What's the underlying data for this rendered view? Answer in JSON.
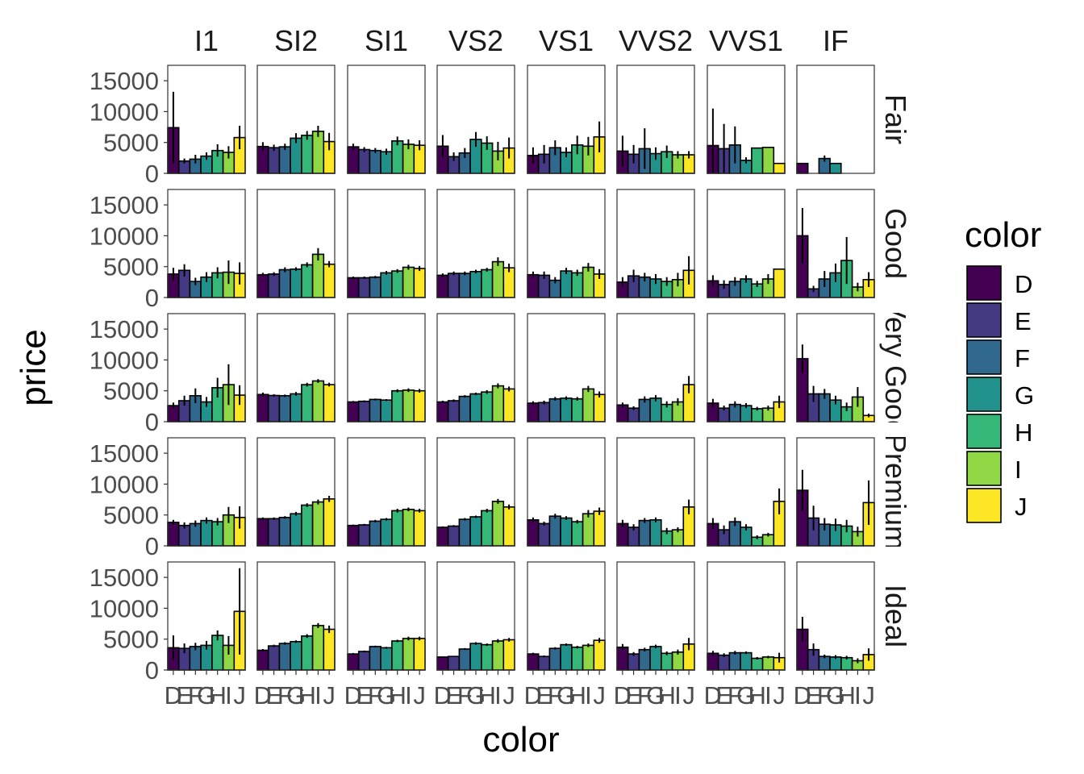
{
  "chart_data": {
    "type": "bar",
    "xlabel": "color",
    "ylabel": "price",
    "ylim": [
      0,
      17500
    ],
    "yticks": [
      "0",
      "5000",
      "10000",
      "15000"
    ],
    "col_facets": [
      "I1",
      "SI2",
      "SI1",
      "VS2",
      "VS1",
      "VVS2",
      "VVS1",
      "IF"
    ],
    "row_facets": [
      "Fair",
      "Good",
      "Very Good",
      "Premium",
      "Ideal"
    ],
    "categories": [
      "D",
      "E",
      "F",
      "G",
      "H",
      "I",
      "J"
    ],
    "legend": {
      "title": "color",
      "position": "right",
      "entries": [
        "D",
        "E",
        "F",
        "G",
        "H",
        "I",
        "J"
      ]
    },
    "colors": {
      "D": "#440154",
      "E": "#443983",
      "F": "#31688e",
      "G": "#21918c",
      "H": "#35b779",
      "I": "#8fd744",
      "J": "#fde725"
    },
    "grid": false,
    "errorbars": "mean ± 1.96·se",
    "panels": [
      {
        "row": "Fair",
        "col": "I1",
        "values": [
          7400,
          2000,
          2300,
          2800,
          3700,
          3400,
          5800
        ],
        "err": [
          5800,
          400,
          700,
          600,
          1000,
          1000,
          1900
        ]
      },
      {
        "row": "Fair",
        "col": "SI2",
        "values": [
          4350,
          4150,
          4300,
          5700,
          6150,
          6800,
          5150
        ],
        "err": [
          700,
          500,
          500,
          800,
          700,
          900,
          1400
        ]
      },
      {
        "row": "Fair",
        "col": "SI1",
        "values": [
          4300,
          3850,
          3700,
          3500,
          5250,
          4700,
          4550
        ],
        "err": [
          500,
          400,
          400,
          500,
          700,
          800,
          800
        ]
      },
      {
        "row": "Fair",
        "col": "VS2",
        "values": [
          4400,
          2700,
          3300,
          5500,
          4900,
          3600,
          4100
        ],
        "err": [
          1800,
          700,
          800,
          1200,
          1100,
          1500,
          1700
        ]
      },
      {
        "row": "Fair",
        "col": "VS1",
        "values": [
          2900,
          3100,
          4150,
          3400,
          4600,
          4400,
          5900
        ],
        "err": [
          1300,
          1500,
          1200,
          800,
          1500,
          1500,
          2500
        ]
      },
      {
        "row": "Fair",
        "col": "VVS2",
        "values": [
          3600,
          3100,
          4000,
          3200,
          3500,
          3000,
          3000
        ],
        "err": [
          2500,
          1500,
          3300,
          1000,
          1000,
          600,
          600
        ]
      },
      {
        "row": "Fair",
        "col": "VVS1",
        "values": [
          4500,
          4000,
          4600,
          2100,
          4100,
          4200,
          1600
        ],
        "err": [
          6000,
          4000,
          3000,
          500,
          0,
          0,
          0
        ]
      },
      {
        "row": "Fair",
        "col": "IF",
        "values": [
          1600,
          0,
          2400,
          1600,
          0,
          0,
          0
        ],
        "err": [
          0,
          0,
          500,
          0,
          0,
          0,
          0
        ]
      },
      {
        "row": "Good",
        "col": "I1",
        "values": [
          3800,
          4400,
          2600,
          3300,
          4000,
          4100,
          3900
        ],
        "err": [
          1000,
          1000,
          600,
          800,
          900,
          1900,
          1800
        ]
      },
      {
        "row": "Good",
        "col": "SI2",
        "values": [
          3700,
          3800,
          4500,
          4600,
          5300,
          7000,
          5400
        ],
        "err": [
          300,
          300,
          400,
          300,
          400,
          1000,
          500
        ]
      },
      {
        "row": "Good",
        "col": "SI1",
        "values": [
          3200,
          3200,
          3300,
          4000,
          4300,
          4900,
          4700
        ],
        "err": [
          200,
          200,
          200,
          300,
          300,
          400,
          400
        ]
      },
      {
        "row": "Good",
        "col": "VS2",
        "values": [
          3600,
          3900,
          3900,
          4200,
          4500,
          5800,
          4800
        ],
        "err": [
          300,
          300,
          300,
          300,
          300,
          700,
          700
        ]
      },
      {
        "row": "Good",
        "col": "VS1",
        "values": [
          3700,
          3600,
          2800,
          4300,
          4000,
          4900,
          3800
        ],
        "err": [
          500,
          600,
          500,
          500,
          500,
          700,
          800
        ]
      },
      {
        "row": "Good",
        "col": "VVS2",
        "values": [
          2500,
          3500,
          3300,
          3000,
          2600,
          2900,
          4400
        ],
        "err": [
          800,
          1000,
          700,
          800,
          700,
          1100,
          2300
        ]
      },
      {
        "row": "Good",
        "col": "VVS1",
        "values": [
          2700,
          2100,
          2600,
          3000,
          2200,
          3000,
          4600
        ],
        "err": [
          900,
          700,
          700,
          600,
          500,
          800,
          0
        ]
      },
      {
        "row": "Good",
        "col": "IF",
        "values": [
          10000,
          1400,
          3000,
          4000,
          6000,
          1700,
          2900
        ],
        "err": [
          4500,
          500,
          1300,
          1500,
          3800,
          700,
          1200
        ]
      },
      {
        "row": "Very Good",
        "col": "I1",
        "values": [
          2600,
          3400,
          4200,
          3200,
          5500,
          6000,
          4300
        ],
        "err": [
          500,
          800,
          1200,
          800,
          1600,
          3300,
          1600
        ]
      },
      {
        "row": "Very Good",
        "col": "SI2",
        "values": [
          4400,
          4250,
          4200,
          4500,
          6000,
          6600,
          6000
        ],
        "err": [
          300,
          200,
          200,
          300,
          300,
          300,
          300
        ]
      },
      {
        "row": "Very Good",
        "col": "SI1",
        "values": [
          3200,
          3300,
          3600,
          3500,
          5000,
          5100,
          5000
        ],
        "err": [
          150,
          150,
          150,
          150,
          250,
          300,
          300
        ]
      },
      {
        "row": "Very Good",
        "col": "VS2",
        "values": [
          3200,
          3400,
          4100,
          4500,
          4800,
          5800,
          5300
        ],
        "err": [
          200,
          200,
          200,
          200,
          300,
          400,
          400
        ]
      },
      {
        "row": "Very Good",
        "col": "VS1",
        "values": [
          3000,
          3100,
          3700,
          3800,
          3700,
          5300,
          4400
        ],
        "err": [
          300,
          300,
          300,
          300,
          300,
          500,
          500
        ]
      },
      {
        "row": "Very Good",
        "col": "VVS2",
        "values": [
          2700,
          2200,
          3600,
          3800,
          2800,
          3200,
          6000
        ],
        "err": [
          400,
          300,
          500,
          500,
          500,
          600,
          1400
        ]
      },
      {
        "row": "Very Good",
        "col": "VVS1",
        "values": [
          3000,
          2200,
          2800,
          2600,
          2100,
          2200,
          3200
        ],
        "err": [
          700,
          400,
          500,
          400,
          300,
          400,
          1000
        ]
      },
      {
        "row": "Very Good",
        "col": "IF",
        "values": [
          10200,
          4500,
          4500,
          3500,
          2400,
          4000,
          1000
        ],
        "err": [
          2300,
          1300,
          800,
          700,
          700,
          1600,
          300
        ]
      },
      {
        "row": "Premium",
        "col": "I1",
        "values": [
          3800,
          3300,
          3600,
          4100,
          3900,
          5000,
          4600
        ],
        "err": [
          400,
          500,
          500,
          500,
          600,
          1300,
          1800
        ]
      },
      {
        "row": "Premium",
        "col": "SI2",
        "values": [
          4400,
          4400,
          4600,
          5200,
          6600,
          7100,
          7600
        ],
        "err": [
          200,
          200,
          200,
          300,
          300,
          400,
          500
        ]
      },
      {
        "row": "Premium",
        "col": "SI1",
        "values": [
          3300,
          3400,
          4000,
          4300,
          5700,
          5900,
          5700
        ],
        "err": [
          150,
          150,
          200,
          200,
          300,
          300,
          300
        ]
      },
      {
        "row": "Premium",
        "col": "VS2",
        "values": [
          3000,
          3200,
          4300,
          4700,
          5700,
          7200,
          6300
        ],
        "err": [
          150,
          150,
          200,
          200,
          300,
          400,
          400
        ]
      },
      {
        "row": "Premium",
        "col": "VS1",
        "values": [
          4200,
          3600,
          4800,
          4500,
          3900,
          5200,
          5600
        ],
        "err": [
          400,
          300,
          400,
          300,
          300,
          600,
          600
        ]
      },
      {
        "row": "Premium",
        "col": "VVS2",
        "values": [
          3600,
          3000,
          4100,
          4200,
          2400,
          2600,
          6300
        ],
        "err": [
          600,
          500,
          400,
          400,
          500,
          400,
          1200
        ]
      },
      {
        "row": "Premium",
        "col": "VVS1",
        "values": [
          3600,
          2600,
          3900,
          3000,
          1400,
          1800,
          7200
        ],
        "err": [
          900,
          700,
          700,
          500,
          300,
          300,
          2100
        ]
      },
      {
        "row": "Premium",
        "col": "IF",
        "values": [
          9000,
          4500,
          3500,
          3400,
          3200,
          2300,
          7000
        ],
        "err": [
          3300,
          2000,
          1000,
          1000,
          1000,
          800,
          3600
        ]
      },
      {
        "row": "Ideal",
        "col": "I1",
        "values": [
          3600,
          3500,
          3800,
          4000,
          5600,
          4000,
          9500
        ],
        "err": [
          2000,
          800,
          600,
          700,
          800,
          1500,
          7000
        ]
      },
      {
        "row": "Ideal",
        "col": "SI2",
        "values": [
          3200,
          3900,
          4300,
          4600,
          5500,
          7200,
          6600
        ],
        "err": [
          200,
          200,
          200,
          200,
          300,
          400,
          600
        ]
      },
      {
        "row": "Ideal",
        "col": "SI1",
        "values": [
          2600,
          3000,
          3800,
          3600,
          4700,
          5100,
          5100
        ],
        "err": [
          150,
          150,
          150,
          150,
          200,
          300,
          300
        ]
      },
      {
        "row": "Ideal",
        "col": "VS2",
        "values": [
          2100,
          2200,
          3400,
          4300,
          4100,
          4700,
          4900
        ],
        "err": [
          100,
          100,
          150,
          200,
          200,
          300,
          300
        ]
      },
      {
        "row": "Ideal",
        "col": "VS1",
        "values": [
          2600,
          2200,
          3500,
          4100,
          3700,
          4000,
          4800
        ],
        "err": [
          200,
          150,
          200,
          200,
          200,
          300,
          400
        ]
      },
      {
        "row": "Ideal",
        "col": "VVS2",
        "values": [
          3700,
          2600,
          3300,
          3800,
          2700,
          2900,
          4200
        ],
        "err": [
          500,
          300,
          300,
          300,
          300,
          400,
          1000
        ]
      },
      {
        "row": "Ideal",
        "col": "VVS1",
        "values": [
          2700,
          2400,
          2800,
          2800,
          1900,
          2100,
          2000
        ],
        "err": [
          400,
          300,
          300,
          200,
          200,
          200,
          800
        ]
      },
      {
        "row": "Ideal",
        "col": "IF",
        "values": [
          6600,
          3300,
          2200,
          2100,
          2000,
          1500,
          2500
        ],
        "err": [
          2000,
          1000,
          300,
          300,
          300,
          400,
          1000
        ]
      }
    ]
  }
}
